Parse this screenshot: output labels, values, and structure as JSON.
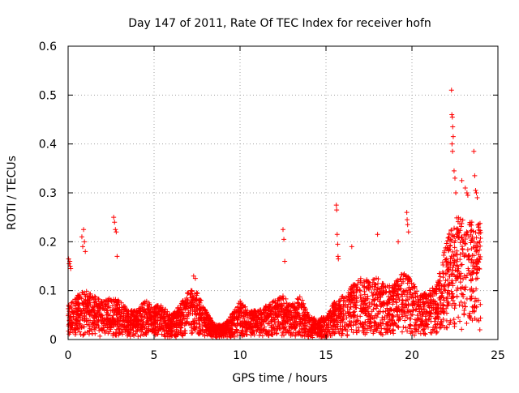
{
  "chart_data": {
    "type": "scatter",
    "title": "Day 147 of 2011, Rate Of TEC Index for receiver hofn",
    "xlabel": "GPS time / hours",
    "ylabel": "ROTI / TECUs",
    "xlim": [
      0,
      25
    ],
    "ylim": [
      0,
      0.6
    ],
    "xticks": [
      0,
      5,
      10,
      15,
      20,
      25
    ],
    "xtick_labels": [
      "0",
      "5",
      "10",
      "15",
      "20",
      "25"
    ],
    "yticks": [
      0,
      0.1,
      0.2,
      0.3,
      0.4,
      0.5,
      0.6
    ],
    "ytick_labels": [
      "0",
      "0.1",
      "0.2",
      "0.3",
      "0.4",
      "0.5",
      "0.6"
    ],
    "grid": true,
    "marker": "+",
    "color": "#ff0000",
    "envelope": [
      [
        0.0,
        0.07
      ],
      [
        0.5,
        0.09
      ],
      [
        1.0,
        0.1
      ],
      [
        1.5,
        0.09
      ],
      [
        2.0,
        0.08
      ],
      [
        2.5,
        0.09
      ],
      [
        3.0,
        0.08
      ],
      [
        3.5,
        0.06
      ],
      [
        4.0,
        0.06
      ],
      [
        4.5,
        0.08
      ],
      [
        5.0,
        0.07
      ],
      [
        5.5,
        0.07
      ],
      [
        6.0,
        0.05
      ],
      [
        6.5,
        0.07
      ],
      [
        7.0,
        0.1
      ],
      [
        7.5,
        0.1
      ],
      [
        8.0,
        0.06
      ],
      [
        8.5,
        0.03
      ],
      [
        9.0,
        0.03
      ],
      [
        9.5,
        0.05
      ],
      [
        10.0,
        0.08
      ],
      [
        10.5,
        0.06
      ],
      [
        11.0,
        0.06
      ],
      [
        11.5,
        0.07
      ],
      [
        12.0,
        0.08
      ],
      [
        12.5,
        0.09
      ],
      [
        13.0,
        0.07
      ],
      [
        13.5,
        0.09
      ],
      [
        14.0,
        0.05
      ],
      [
        14.5,
        0.04
      ],
      [
        15.0,
        0.05
      ],
      [
        15.5,
        0.08
      ],
      [
        16.0,
        0.09
      ],
      [
        16.5,
        0.11
      ],
      [
        17.0,
        0.13
      ],
      [
        17.5,
        0.12
      ],
      [
        18.0,
        0.13
      ],
      [
        18.5,
        0.11
      ],
      [
        19.0,
        0.12
      ],
      [
        19.5,
        0.14
      ],
      [
        20.0,
        0.12
      ],
      [
        20.5,
        0.09
      ],
      [
        21.0,
        0.1
      ],
      [
        21.5,
        0.12
      ],
      [
        22.0,
        0.2
      ],
      [
        22.5,
        0.25
      ],
      [
        23.0,
        0.25
      ],
      [
        23.5,
        0.24
      ],
      [
        24.0,
        0.24
      ]
    ],
    "spikes": [
      [
        0.03,
        0.165
      ],
      [
        0.06,
        0.155
      ],
      [
        0.1,
        0.16
      ],
      [
        0.12,
        0.15
      ],
      [
        0.15,
        0.145
      ],
      [
        0.8,
        0.21
      ],
      [
        0.85,
        0.19
      ],
      [
        0.9,
        0.225
      ],
      [
        0.95,
        0.2
      ],
      [
        1.0,
        0.18
      ],
      [
        2.65,
        0.25
      ],
      [
        2.7,
        0.24
      ],
      [
        2.75,
        0.225
      ],
      [
        2.8,
        0.22
      ],
      [
        2.85,
        0.17
      ],
      [
        7.3,
        0.13
      ],
      [
        7.4,
        0.125
      ],
      [
        12.5,
        0.225
      ],
      [
        12.55,
        0.205
      ],
      [
        12.6,
        0.16
      ],
      [
        15.6,
        0.275
      ],
      [
        15.62,
        0.265
      ],
      [
        15.65,
        0.215
      ],
      [
        15.68,
        0.195
      ],
      [
        15.7,
        0.17
      ],
      [
        15.72,
        0.165
      ],
      [
        16.5,
        0.19
      ],
      [
        18.0,
        0.215
      ],
      [
        19.2,
        0.2
      ],
      [
        19.7,
        0.26
      ],
      [
        19.72,
        0.245
      ],
      [
        19.75,
        0.235
      ],
      [
        19.8,
        0.22
      ],
      [
        22.3,
        0.51
      ],
      [
        22.32,
        0.46
      ],
      [
        22.35,
        0.455
      ],
      [
        22.37,
        0.435
      ],
      [
        22.4,
        0.415
      ],
      [
        22.33,
        0.4
      ],
      [
        22.36,
        0.385
      ],
      [
        22.45,
        0.345
      ],
      [
        22.5,
        0.33
      ],
      [
        22.55,
        0.3
      ],
      [
        22.9,
        0.325
      ],
      [
        23.1,
        0.31
      ],
      [
        23.2,
        0.3
      ],
      [
        23.25,
        0.295
      ],
      [
        23.6,
        0.385
      ],
      [
        23.65,
        0.335
      ],
      [
        23.7,
        0.305
      ],
      [
        23.75,
        0.3
      ],
      [
        23.8,
        0.29
      ]
    ]
  }
}
